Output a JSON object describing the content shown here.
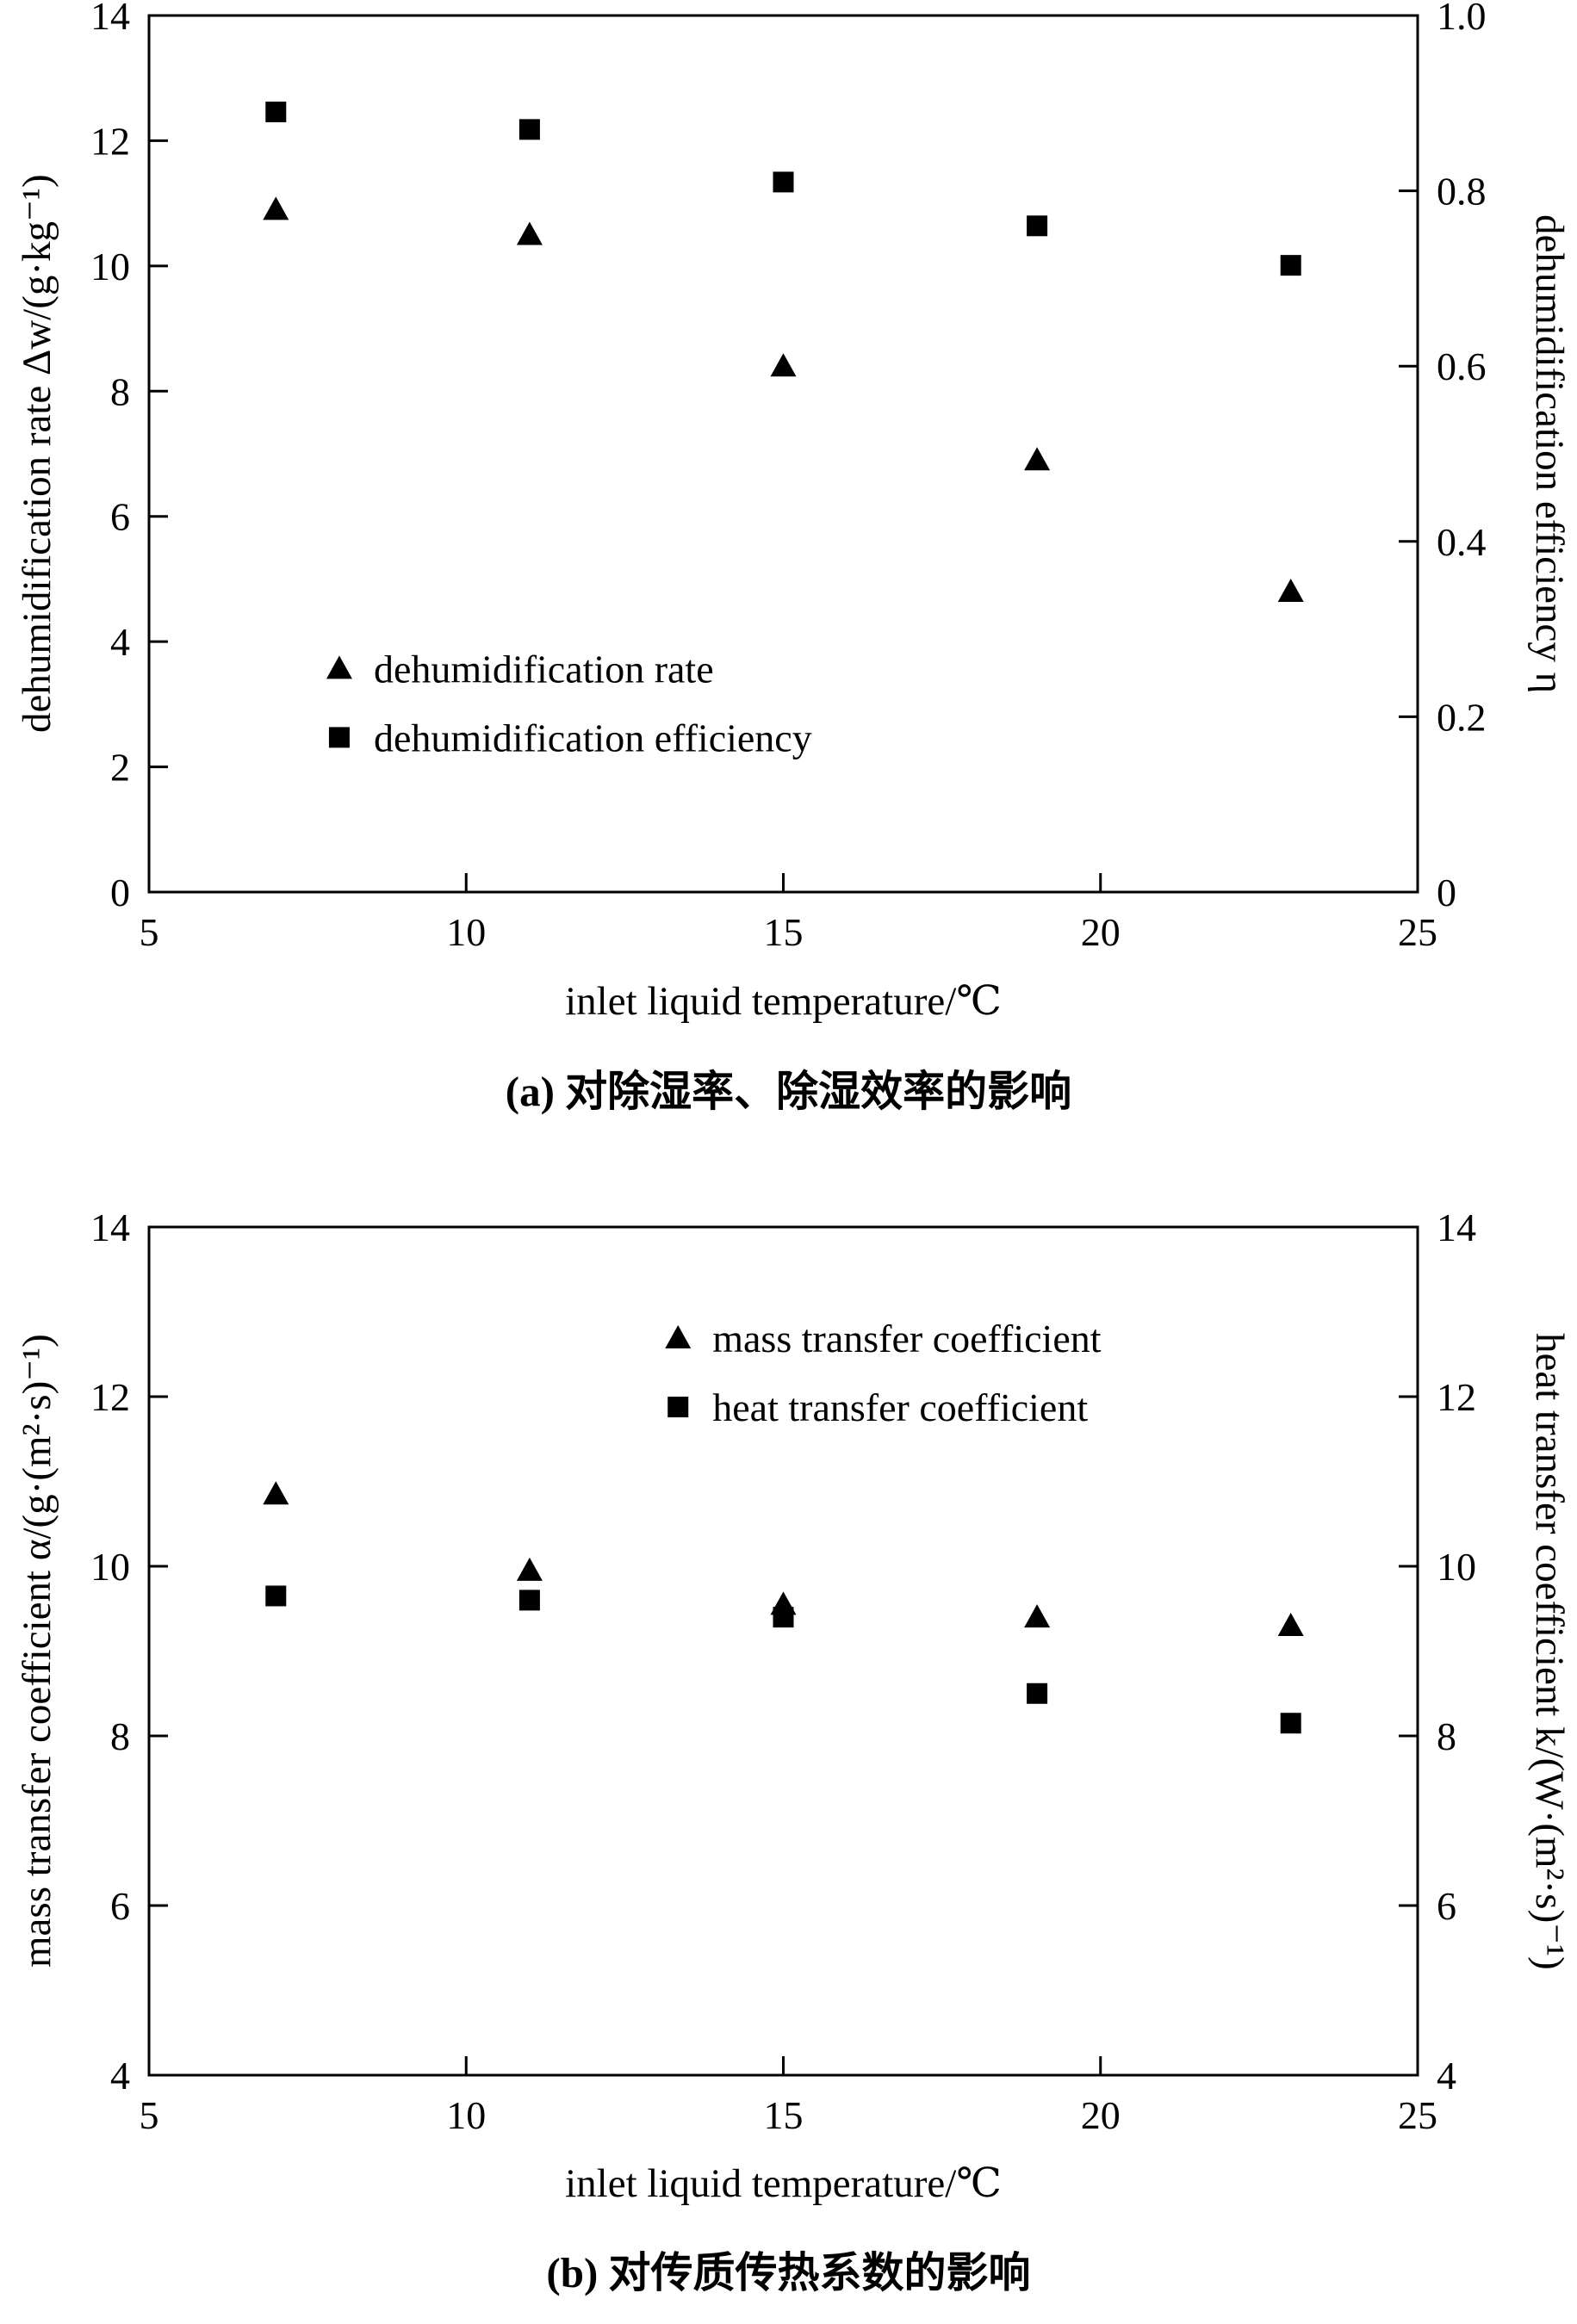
{
  "figure": {
    "background": "#ffffff",
    "ink": "#000000"
  },
  "chart_data": [
    {
      "id": "a",
      "type": "scatter",
      "caption": "(a) 对除湿率、除湿效率的影响",
      "xlabel": "inlet liquid temperature/℃",
      "ylabel_left": "dehumidification rate Δw/(g·kg⁻¹)",
      "ylabel_right": "dehumidification efficiency η",
      "xlim": [
        5,
        25
      ],
      "xticks": [
        5,
        10,
        15,
        20,
        25
      ],
      "xtick_labels": [
        "5",
        "10",
        "15",
        "20",
        "25"
      ],
      "ylim_left": [
        0,
        14
      ],
      "yticks_left": [
        0,
        2,
        4,
        6,
        8,
        10,
        12,
        14
      ],
      "ytick_left_labels": [
        "0",
        "2",
        "4",
        "6",
        "8",
        "10",
        "12",
        "14"
      ],
      "ylim_right": [
        0,
        1.0
      ],
      "yticks_right": [
        0,
        0.2,
        0.4,
        0.6,
        0.8,
        1.0
      ],
      "ytick_right_labels": [
        "0",
        "0.2",
        "0.4",
        "0.6",
        "0.8",
        "1.0"
      ],
      "grid": false,
      "legend_position": "lower-left-inside",
      "series": [
        {
          "name": "dehumidification rate",
          "marker": "triangle",
          "axis": "left",
          "x": [
            7,
            11,
            15,
            19,
            23
          ],
          "y": [
            10.9,
            10.5,
            8.4,
            6.9,
            4.8
          ]
        },
        {
          "name": "dehumidification efficiency",
          "marker": "square",
          "axis": "right",
          "x": [
            7,
            11,
            15,
            19,
            23
          ],
          "y": [
            0.89,
            0.87,
            0.81,
            0.76,
            0.715
          ]
        }
      ]
    },
    {
      "id": "b",
      "type": "scatter",
      "caption": "(b) 对传质传热系数的影响",
      "xlabel": "inlet liquid temperature/℃",
      "ylabel_left": "mass transfer coefficient α/(g·(m²·s)⁻¹)",
      "ylabel_right": "heat transfer coefficient k/(W·(m²·s)⁻¹)",
      "xlim": [
        5,
        25
      ],
      "xticks": [
        5,
        10,
        15,
        20,
        25
      ],
      "xtick_labels": [
        "5",
        "10",
        "15",
        "20",
        "25"
      ],
      "ylim_left": [
        4,
        14
      ],
      "yticks_left": [
        4,
        6,
        8,
        10,
        12,
        14
      ],
      "ytick_left_labels": [
        "4",
        "6",
        "8",
        "10",
        "12",
        "14"
      ],
      "ylim_right": [
        4,
        14
      ],
      "yticks_right": [
        4,
        6,
        8,
        10,
        12,
        14
      ],
      "ytick_right_labels": [
        "4",
        "6",
        "8",
        "10",
        "12",
        "14"
      ],
      "grid": false,
      "legend_position": "upper-center-right-inside",
      "series": [
        {
          "name": "mass transfer coefficient",
          "marker": "triangle",
          "axis": "left",
          "x": [
            7,
            11,
            15,
            19,
            23
          ],
          "y": [
            10.85,
            9.95,
            9.55,
            9.4,
            9.3
          ]
        },
        {
          "name": "heat transfer coefficient",
          "marker": "square",
          "axis": "right",
          "x": [
            7,
            11,
            15,
            19,
            23
          ],
          "y": [
            9.65,
            9.6,
            9.4,
            8.5,
            8.15
          ]
        }
      ]
    }
  ]
}
